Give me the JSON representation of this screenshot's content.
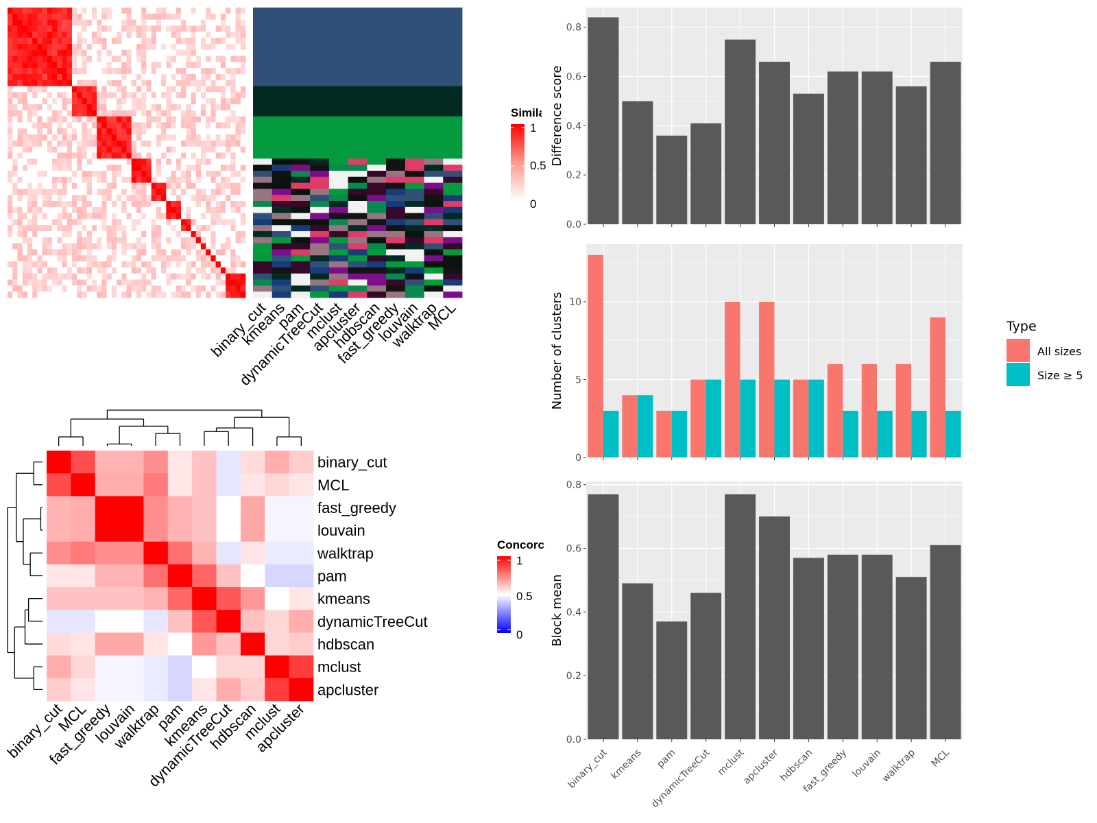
{
  "methods": [
    "binary_cut",
    "kmeans",
    "pam",
    "dynamicTreeCut",
    "mclust",
    "apcluster",
    "hdbscan",
    "fast_greedy",
    "louvain",
    "walktrap",
    "MCL"
  ],
  "similarity_legend": {
    "title": "Simila",
    "ticks": [
      "1",
      "0.5",
      "0"
    ],
    "colors": {
      "high": "#ff0000",
      "low": "#ffffff"
    }
  },
  "concordance_legend": {
    "title": "Concorc",
    "ticks": [
      "1",
      "0.5",
      "0"
    ],
    "colors": {
      "high": "#ff0000",
      "mid": "#ffffff",
      "low": "#0000ff"
    }
  },
  "chart_data": [
    {
      "type": "heatmap",
      "name": "term similarity heatmap with cluster assignment annotation",
      "x_labels": [
        "binary_cut",
        "kmeans",
        "pam",
        "dynamicTreeCut",
        "mclust",
        "apcluster",
        "hdbscan",
        "fast_greedy",
        "louvain",
        "walktrap",
        "MCL"
      ],
      "block_sizes": [
        11,
        2,
        5,
        7,
        4,
        3,
        3,
        2,
        1,
        1,
        1,
        1,
        1,
        1,
        1,
        4
      ],
      "cluster_palette": [
        "#2f5077",
        "#032a22",
        "#049a3e",
        "#131313",
        "#977682",
        "#07894f",
        "#7c0d8b",
        "#f2f2f0",
        "#36092a",
        "#e03c68",
        "#0c130f",
        "#1a3b7a"
      ]
    },
    {
      "type": "heatmap",
      "name": "concordance",
      "row_labels": [
        "binary_cut",
        "MCL",
        "fast_greedy",
        "louvain",
        "walktrap",
        "pam",
        "kmeans",
        "dynamicTreeCut",
        "hdbscan",
        "mclust",
        "apcluster"
      ],
      "col_labels": [
        "binary_cut",
        "MCL",
        "fast_greedy",
        "louvain",
        "walktrap",
        "pam",
        "kmeans",
        "dynamicTreeCut",
        "hdbscan",
        "mclust",
        "apcluster"
      ],
      "values": [
        [
          1.0,
          0.85,
          0.65,
          0.65,
          0.72,
          0.55,
          0.62,
          0.45,
          0.57,
          0.66,
          0.6
        ],
        [
          0.85,
          1.0,
          0.66,
          0.66,
          0.76,
          0.55,
          0.62,
          0.45,
          0.55,
          0.58,
          0.55
        ],
        [
          0.65,
          0.66,
          1.0,
          1.0,
          0.72,
          0.65,
          0.62,
          0.5,
          0.67,
          0.48,
          0.48
        ],
        [
          0.65,
          0.66,
          1.0,
          1.0,
          0.72,
          0.65,
          0.62,
          0.5,
          0.67,
          0.48,
          0.48
        ],
        [
          0.72,
          0.76,
          0.72,
          0.72,
          1.0,
          0.78,
          0.65,
          0.45,
          0.55,
          0.46,
          0.46
        ],
        [
          0.55,
          0.55,
          0.65,
          0.65,
          0.78,
          1.0,
          0.8,
          0.62,
          0.5,
          0.42,
          0.42
        ],
        [
          0.62,
          0.62,
          0.62,
          0.62,
          0.65,
          0.8,
          1.0,
          0.83,
          0.7,
          0.5,
          0.55
        ],
        [
          0.45,
          0.45,
          0.5,
          0.5,
          0.45,
          0.62,
          0.83,
          1.0,
          0.62,
          0.58,
          0.66
        ],
        [
          0.57,
          0.55,
          0.67,
          0.67,
          0.55,
          0.5,
          0.7,
          0.62,
          1.0,
          0.58,
          0.6
        ],
        [
          0.66,
          0.58,
          0.48,
          0.48,
          0.46,
          0.42,
          0.5,
          0.58,
          0.58,
          1.0,
          0.88
        ],
        [
          0.6,
          0.55,
          0.48,
          0.48,
          0.46,
          0.42,
          0.55,
          0.66,
          0.6,
          0.88,
          1.0
        ]
      ]
    },
    {
      "type": "bar",
      "categories": [
        "binary_cut",
        "kmeans",
        "pam",
        "dynamicTreeCut",
        "mclust",
        "apcluster",
        "hdbscan",
        "fast_greedy",
        "louvain",
        "walktrap",
        "MCL"
      ],
      "values": [
        0.84,
        0.5,
        0.36,
        0.41,
        0.75,
        0.66,
        0.53,
        0.62,
        0.62,
        0.56,
        0.66
      ],
      "ylabel": "Difference score",
      "yticks": [
        "0.0",
        "0.2",
        "0.4",
        "0.6",
        "0.8"
      ],
      "ylim": [
        0,
        0.88
      ]
    },
    {
      "type": "bar",
      "categories": [
        "binary_cut",
        "kmeans",
        "pam",
        "dynamicTreeCut",
        "mclust",
        "apcluster",
        "hdbscan",
        "fast_greedy",
        "louvain",
        "walktrap",
        "MCL"
      ],
      "series": [
        {
          "name": "All sizes",
          "color": "#f8766d",
          "values": [
            13,
            4,
            3,
            5,
            10,
            10,
            5,
            6,
            6,
            6,
            9
          ]
        },
        {
          "name": "Size ≥ 5",
          "color": "#00bfc4",
          "values": [
            3,
            4,
            3,
            5,
            5,
            5,
            5,
            3,
            3,
            3,
            3
          ]
        }
      ],
      "ylabel": "Number of clusters",
      "yticks": [
        "0",
        "5",
        "10"
      ],
      "ylim": [
        0,
        13.7
      ],
      "legend_title": "Type",
      "legend_position": "right"
    },
    {
      "type": "bar",
      "categories": [
        "binary_cut",
        "kmeans",
        "pam",
        "dynamicTreeCut",
        "mclust",
        "apcluster",
        "hdbscan",
        "fast_greedy",
        "louvain",
        "walktrap",
        "MCL"
      ],
      "values": [
        0.77,
        0.49,
        0.37,
        0.46,
        0.77,
        0.7,
        0.57,
        0.58,
        0.58,
        0.51,
        0.61
      ],
      "ylabel": "Block mean",
      "yticks": [
        "0.0",
        "0.2",
        "0.4",
        "0.6",
        "0.8"
      ],
      "ylim": [
        0,
        0.81
      ]
    }
  ]
}
